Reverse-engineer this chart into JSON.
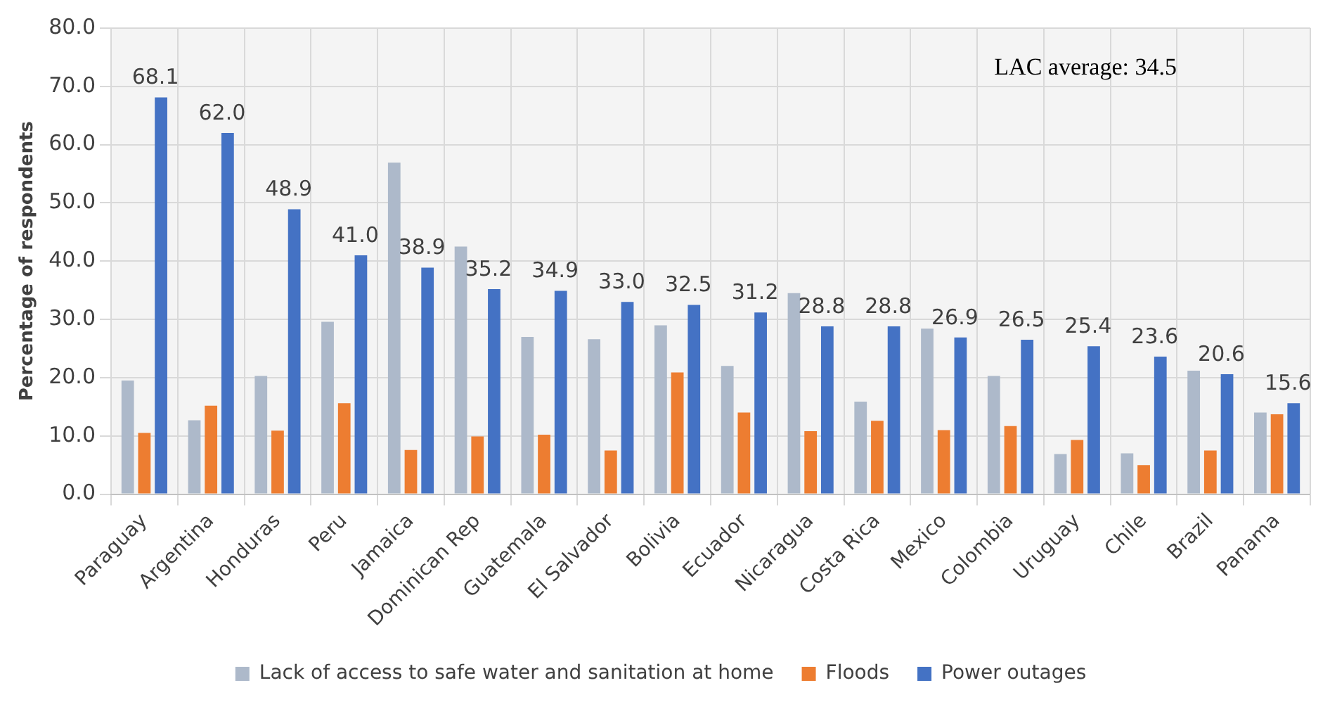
{
  "chart_data": {
    "type": "bar",
    "ylabel": "Percentage of respondents",
    "categories": [
      "Paraguay",
      "Argentina",
      "Honduras",
      "Peru",
      "Jamaica",
      "Dominican Rep",
      "Guatemala",
      "El Salvador",
      "Bolivia",
      "Ecuador",
      "Nicaragua",
      "Costa Rica",
      "Mexico",
      "Colombia",
      "Uruguay",
      "Chile",
      "Brazil",
      "Panama"
    ],
    "series": [
      {
        "name": "Lack of access to safe water and sanitation at home",
        "color": "#adb9ca",
        "values": [
          19.5,
          12.7,
          20.3,
          29.6,
          56.9,
          42.5,
          27.0,
          26.6,
          29.0,
          22.0,
          34.5,
          15.9,
          28.4,
          20.3,
          6.9,
          7.0,
          21.2,
          14.0
        ]
      },
      {
        "name": "Floods",
        "color": "#ed7d31",
        "values": [
          10.5,
          15.2,
          10.9,
          15.6,
          7.6,
          9.9,
          10.2,
          7.5,
          20.9,
          14.0,
          10.8,
          12.6,
          11.0,
          11.7,
          9.3,
          5.0,
          7.5,
          13.7
        ]
      },
      {
        "name": "Power outages",
        "color": "#4472c4",
        "values": [
          68.1,
          62.0,
          48.9,
          41.0,
          38.9,
          35.2,
          34.9,
          33.0,
          32.5,
          31.2,
          28.8,
          28.8,
          26.9,
          26.5,
          25.4,
          23.6,
          20.6,
          15.6
        ],
        "value_labels": [
          "68.1",
          "62.0",
          "48.9",
          "41.0",
          "38.9",
          "35.2",
          "34.9",
          "33.0",
          "32.5",
          "31.2",
          "28.8",
          "28.8",
          "26.9",
          "26.5",
          "25.4",
          "23.6",
          "20.6",
          "15.6"
        ]
      }
    ],
    "ylim": [
      0,
      80
    ],
    "yticks": [
      {
        "value": 0,
        "label": "0.0"
      },
      {
        "value": 10,
        "label": "10.0"
      },
      {
        "value": 20,
        "label": "20.0"
      },
      {
        "value": 30,
        "label": "30.0"
      },
      {
        "value": 40,
        "label": "40.0"
      },
      {
        "value": 50,
        "label": "50.0"
      },
      {
        "value": 60,
        "label": "60.0"
      },
      {
        "value": 70,
        "label": "70.0"
      },
      {
        "value": 80,
        "label": "80.0"
      }
    ],
    "grid": true,
    "legend": "bottom",
    "annotations": [
      "LAC average: 34.5"
    ]
  }
}
